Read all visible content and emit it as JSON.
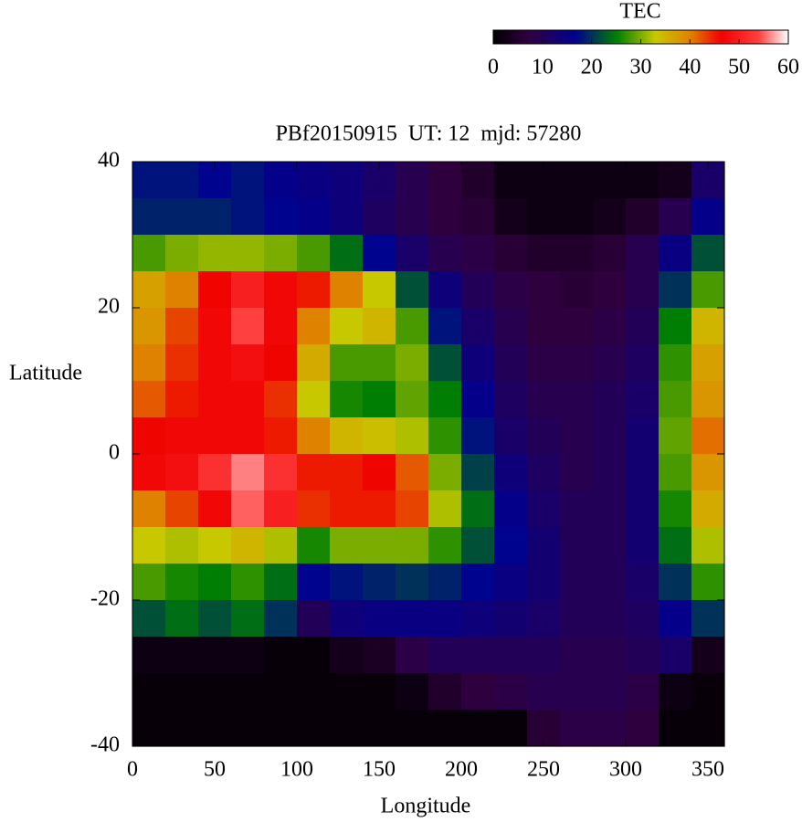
{
  "chart_data": {
    "type": "heatmap",
    "title": "PBf20150915  UT: 12  mjd: 57280",
    "x_label": "Longitude",
    "y_label": "Latitude",
    "colorbar_label": "TEC",
    "x": [
      10,
      30,
      50,
      70,
      90,
      110,
      130,
      150,
      170,
      190,
      210,
      230,
      250,
      270,
      290,
      310,
      330,
      350
    ],
    "y": [
      37.5,
      32.5,
      27.5,
      22.5,
      17.5,
      12.5,
      7.5,
      2.5,
      -2.5,
      -7.5,
      -12.5,
      -17.5,
      -22.5,
      -27.5,
      -32.5,
      -37.5
    ],
    "z": [
      [
        18,
        18,
        17,
        18,
        16,
        15,
        14,
        12,
        9,
        7,
        5,
        2,
        2,
        2,
        2,
        2,
        3,
        12
      ],
      [
        19,
        19,
        19,
        18,
        17,
        16,
        14,
        11,
        9,
        7,
        6,
        3,
        2,
        2,
        3,
        5,
        9,
        16
      ],
      [
        28,
        30,
        31,
        31,
        30,
        28,
        24,
        17,
        12,
        9,
        8,
        6,
        5,
        5,
        6,
        9,
        15,
        22
      ],
      [
        37,
        40,
        46,
        50,
        47,
        45,
        40,
        33,
        22,
        14,
        10,
        8,
        7,
        6,
        7,
        9,
        20,
        28
      ],
      [
        38,
        43,
        47,
        54,
        47,
        40,
        33,
        35,
        28,
        18,
        12,
        9,
        7,
        7,
        8,
        10,
        25,
        35
      ],
      [
        40,
        44,
        47,
        48,
        46,
        36,
        28,
        28,
        30,
        22,
        14,
        10,
        8,
        8,
        9,
        11,
        27,
        37
      ],
      [
        42,
        45,
        47,
        47,
        44,
        33,
        26,
        25,
        29,
        25,
        16,
        11,
        9,
        9,
        10,
        12,
        28,
        38
      ],
      [
        46,
        47,
        47,
        47,
        45,
        40,
        35,
        34,
        32,
        27,
        18,
        12,
        10,
        9,
        10,
        13,
        29,
        41
      ],
      [
        47,
        48,
        52,
        56,
        52,
        45,
        45,
        46,
        42,
        30,
        21,
        14,
        11,
        9,
        10,
        13,
        28,
        38
      ],
      [
        40,
        43,
        47,
        55,
        50,
        44,
        45,
        45,
        43,
        32,
        24,
        16,
        12,
        10,
        10,
        13,
        26,
        36
      ],
      [
        33,
        32,
        33,
        35,
        32,
        26,
        30,
        30,
        30,
        27,
        22,
        17,
        13,
        10,
        10,
        13,
        24,
        32
      ],
      [
        28,
        26,
        25,
        27,
        24,
        17,
        18,
        19,
        20,
        19,
        17,
        15,
        13,
        10,
        10,
        12,
        20,
        27
      ],
      [
        22,
        24,
        22,
        24,
        20,
        10,
        14,
        15,
        15,
        15,
        14,
        13,
        12,
        10,
        10,
        11,
        16,
        20
      ],
      [
        2,
        2,
        2,
        2,
        1,
        1,
        3,
        4,
        8,
        10,
        10,
        10,
        10,
        9,
        9,
        10,
        12,
        3
      ],
      [
        1,
        1,
        1,
        1,
        1,
        1,
        1,
        1,
        2,
        5,
        7,
        8,
        9,
        9,
        9,
        8,
        2,
        1
      ],
      [
        1,
        1,
        1,
        1,
        1,
        1,
        1,
        1,
        1,
        1,
        1,
        1,
        6,
        8,
        8,
        7,
        1,
        1
      ]
    ],
    "xlim": [
      0,
      360
    ],
    "xticks": [
      0,
      50,
      100,
      150,
      200,
      250,
      300,
      350
    ],
    "ylim": [
      -40,
      40
    ],
    "yticks": [
      -40,
      -20,
      0,
      20,
      40
    ],
    "zlim": [
      0,
      60
    ],
    "zticks": [
      0,
      10,
      20,
      30,
      40,
      50,
      60
    ]
  }
}
